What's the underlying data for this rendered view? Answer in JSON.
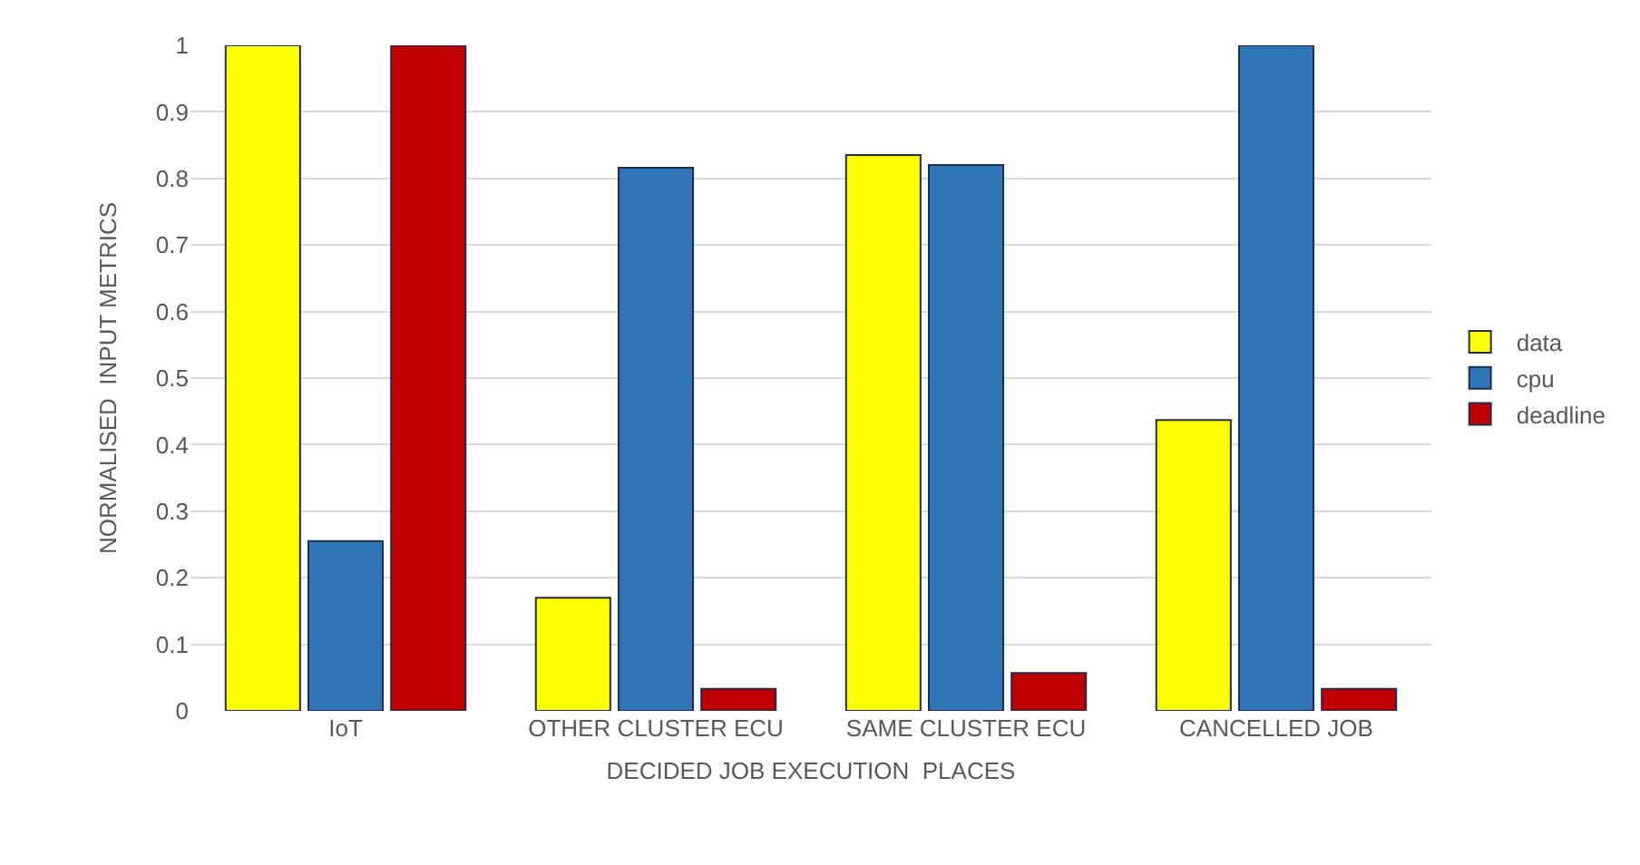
{
  "chart_data": {
    "type": "bar",
    "xlabel": "DECIDED JOB EXECUTION  PLACES",
    "ylabel": "NORMALISED  INPUT METRICS",
    "categories": [
      "IoT",
      "OTHER CLUSTER ECU",
      "SAME CLUSTER ECU",
      "CANCELLED JOB"
    ],
    "series": [
      {
        "name": "data",
        "color": "#ffff00",
        "values": [
          1,
          0.17,
          0.835,
          0.437
        ]
      },
      {
        "name": "cpu",
        "color": "#2e75b6",
        "values": [
          0.255,
          0.816,
          0.82,
          1
        ]
      },
      {
        "name": "deadline",
        "color": "#c00000",
        "values": [
          1,
          0.033,
          0.057,
          0.033
        ]
      }
    ],
    "ylim": [
      0,
      1
    ],
    "yticks": [
      0,
      0.1,
      0.2,
      0.3,
      0.4,
      0.5,
      0.6,
      0.7,
      0.8,
      0.9,
      1
    ],
    "grid": "y",
    "legend": "right"
  }
}
